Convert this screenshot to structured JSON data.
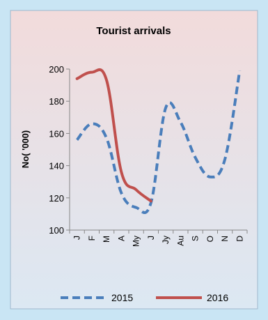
{
  "chart_data": {
    "type": "line",
    "title": "Tourist arrivals",
    "xlabel": "",
    "ylabel": "No( '000)",
    "categories": [
      "J",
      "F",
      "M",
      "A",
      "My",
      "J",
      "Jy",
      "Au",
      "S",
      "O",
      "N",
      "D"
    ],
    "ylim": [
      100,
      200
    ],
    "yticks": [
      100,
      120,
      140,
      160,
      180,
      200
    ],
    "grid": false,
    "legend_position": "bottom",
    "series": [
      {
        "name": "2015",
        "color": "#4a7ebb",
        "dash": "dashed",
        "values": [
          156,
          166,
          157,
          123,
          114,
          117,
          176,
          167,
          145,
          133,
          144,
          199
        ]
      },
      {
        "name": "2016",
        "color": "#c0504d",
        "dash": "solid",
        "values": [
          194,
          198,
          193,
          136,
          125,
          118,
          null,
          null,
          null,
          null,
          null,
          null
        ]
      }
    ]
  }
}
